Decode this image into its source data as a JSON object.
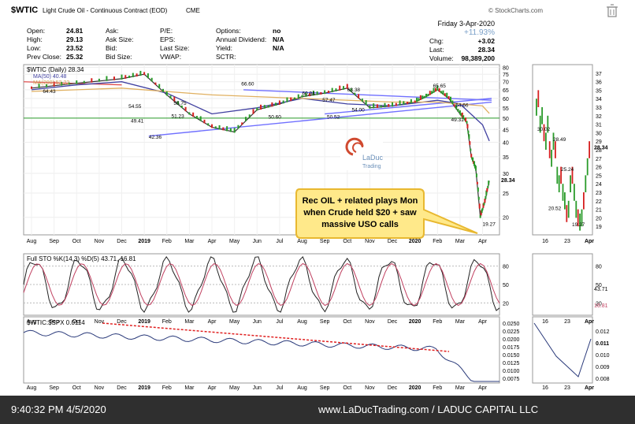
{
  "header": {
    "symbol": "$WTIC",
    "name": "Light Crude Oil - Continuous Contract (EOD)",
    "exchange": "CME",
    "brand": "© StockCharts.com",
    "date": "Friday  3-Apr-2020",
    "pct_change": "+11.93%",
    "chg_label": "Chg:",
    "chg": "+3.02",
    "last_label": "Last:",
    "last": "28.34",
    "volume_label": "Volume:",
    "volume": "98,389,200",
    "fields": [
      {
        "label": "Open:",
        "value": "24.81"
      },
      {
        "label": "High:",
        "value": "29.13"
      },
      {
        "label": "Low:",
        "value": "23.52"
      },
      {
        "label": "Prev Close:",
        "value": "25.32"
      }
    ],
    "fields2": [
      "Ask:",
      "Ask Size:",
      "Bid:",
      "Bid Size:"
    ],
    "fields3": [
      "P/E:",
      "EPS:",
      "Last Size:",
      "VWAP:"
    ],
    "fields4": [
      {
        "label": "Options:",
        "value": "no"
      },
      {
        "label": "Annual Dividend:",
        "value": "N/A"
      },
      {
        "label": "Yield:",
        "value": "N/A"
      },
      {
        "label": "SCTR:",
        "value": ""
      }
    ]
  },
  "chart_data": [
    {
      "type": "line",
      "panel": "price",
      "legend": [
        "$WTIC (Daily) 28.34",
        "MA(50) 40.48",
        "MA(200) 52.22"
      ],
      "x_labels": [
        "Aug",
        "Sep",
        "Oct",
        "Nov",
        "Dec",
        "2019",
        "Feb",
        "Mar",
        "Apr",
        "May",
        "Jun",
        "Jul",
        "Aug",
        "Sep",
        "Oct",
        "Nov",
        "Dec",
        "2020",
        "Feb",
        "Mar",
        "Apr"
      ],
      "y_ticks": [
        20,
        25,
        30,
        35,
        40,
        45,
        50,
        55,
        60,
        65,
        70,
        75,
        80
      ],
      "ylim": [
        17,
        82
      ],
      "scale": "log",
      "annotations": [
        "64.43",
        "54.55",
        "49.41",
        "42.36",
        "55.75",
        "51.23",
        "66.60",
        "50.60",
        "60.94",
        "57.47",
        "50.52",
        "63.38",
        "54.00",
        "65.65",
        "54.66",
        "49.31",
        "19.27"
      ],
      "last_label": "28.34",
      "series": [
        {
          "name": "$WTIC",
          "x": [
            0,
            2,
            4,
            5,
            6,
            7,
            8,
            9,
            10,
            11,
            12,
            13,
            14,
            15,
            16,
            17,
            17.5,
            18,
            18.5,
            19,
            19.3,
            19.5,
            19.7,
            19.9,
            20.1,
            20.3
          ],
          "values": [
            66,
            69,
            72,
            75,
            62,
            52,
            46,
            44,
            54,
            57,
            61,
            63,
            66,
            55,
            56,
            58,
            61,
            65,
            60,
            52,
            48,
            35,
            31,
            20,
            23,
            28
          ]
        },
        {
          "name": "MA(50)",
          "x": [
            0,
            2,
            4,
            6,
            8,
            10,
            12,
            14,
            16,
            18,
            19,
            20,
            20.3
          ],
          "values": [
            65,
            68,
            70,
            63,
            52,
            55,
            60,
            57,
            56,
            59,
            57,
            47,
            40.48
          ]
        },
        {
          "name": "MA(200)",
          "x": [
            0,
            4,
            8,
            12,
            16,
            18,
            20,
            20.3
          ],
          "values": [
            64,
            66,
            62,
            60,
            58,
            58,
            56,
            52.22
          ]
        }
      ]
    },
    {
      "type": "line",
      "panel": "price-zoom",
      "x_labels": [
        "16",
        "23",
        "Apr"
      ],
      "y_ticks": [
        19,
        20,
        21,
        22,
        23,
        24,
        25,
        26,
        27,
        28,
        29,
        30,
        31,
        32,
        33,
        34,
        35,
        36,
        37
      ],
      "annotations": [
        "30.02",
        "28.49",
        "25.24",
        "20.52",
        "19.27"
      ],
      "last_label": "28.34"
    },
    {
      "type": "line",
      "panel": "stochastic",
      "legend": "Full STO %K(14,3) %D(5) 43.71, 16.81",
      "y_ticks": [
        20,
        50,
        80
      ],
      "side_labels": [
        "43.71",
        "16.81"
      ]
    },
    {
      "type": "line",
      "panel": "ratio",
      "legend": "$WTIC:$SPX 0.0114",
      "y_ticks": [
        "0.0250",
        "0.0225",
        "0.0200",
        "0.0175",
        "0.0150",
        "0.0125",
        "0.0100",
        "0.0075"
      ],
      "zoom_ticks": [
        "0.012",
        "0.011",
        "0.010",
        "0.009",
        "0.008"
      ],
      "zoom_last": "0.011"
    }
  ],
  "logo": {
    "line1": "LaDuc",
    "line2": "Trading"
  },
  "callout": {
    "line1": "Rec OIL + related plays Mon",
    "line2": "when Crude held $20 + saw",
    "line3": "massive USO calls"
  },
  "footer": {
    "timestamp": "9:40:32 PM 4/5/2020",
    "credit": "www.LaDucTrading.com / LADUC CAPITAL LLC"
  },
  "colors": {
    "price_up": "#2a9b2a",
    "price_down": "#d62020",
    "ma50": "#4040a0",
    "ma200": "#e0b060",
    "trend": "#7070ff",
    "callout": "#ffe98a"
  }
}
